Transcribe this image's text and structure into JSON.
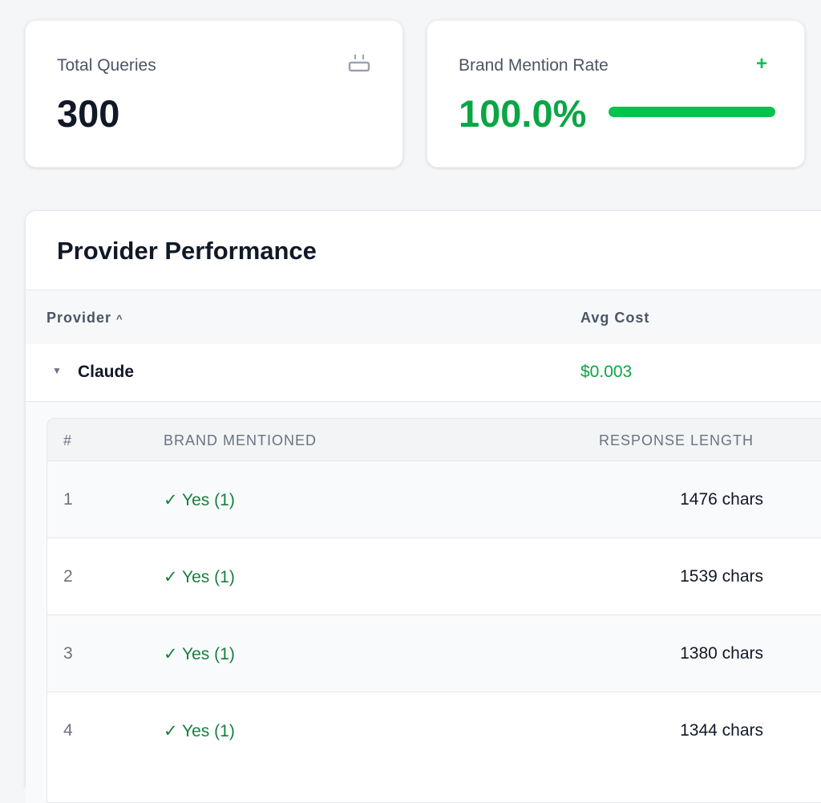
{
  "stats": {
    "total_queries": {
      "label": "Total Queries",
      "value": "300",
      "icon": "plug-icon"
    },
    "brand_mention_rate": {
      "label": "Brand Mention Rate",
      "value": "100.0%",
      "progress_percent": 100,
      "icon": "plus-icon",
      "icon_glyph": "+",
      "accent": "#00c34b"
    }
  },
  "provider_performance": {
    "title": "Provider Performance",
    "columns": {
      "provider": "Provider",
      "sort_glyph": "^",
      "avg_cost": "Avg Cost"
    },
    "providers": [
      {
        "name": "Claude",
        "expand_glyph": "▼",
        "avg_cost": "$0.003"
      }
    ],
    "details": {
      "columns": [
        "#",
        "BRAND MENTIONED",
        "RESPONSE LENGTH"
      ],
      "rows": [
        {
          "n": "1",
          "brand": "✓ Yes (1)",
          "length": "1476 chars"
        },
        {
          "n": "2",
          "brand": "✓ Yes (1)",
          "length": "1539 chars"
        },
        {
          "n": "3",
          "brand": "✓ Yes (1)",
          "length": "1380 chars"
        },
        {
          "n": "4",
          "brand": "✓ Yes (1)",
          "length": "1344 chars"
        }
      ]
    }
  }
}
